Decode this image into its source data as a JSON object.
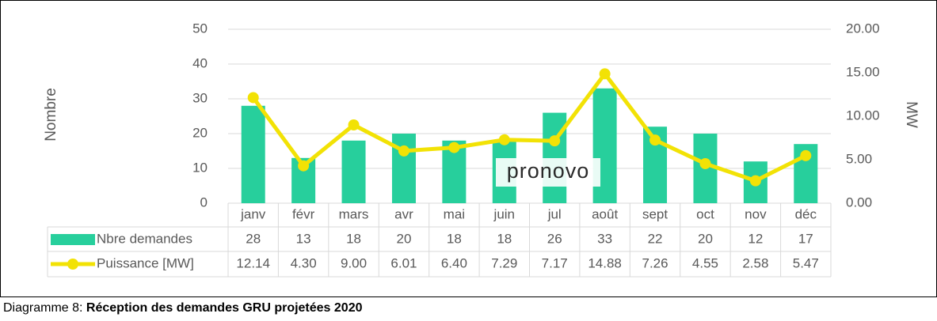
{
  "chart_data": {
    "type": "bar-line",
    "categories": [
      "janv",
      "févr",
      "mars",
      "avr",
      "mai",
      "juin",
      "jul",
      "août",
      "sept",
      "oct",
      "nov",
      "déc"
    ],
    "series": [
      {
        "name": "Nbre demandes",
        "type": "bar",
        "color": "#27cf9c",
        "values": [
          28,
          13,
          18,
          20,
          18,
          18,
          26,
          33,
          22,
          20,
          12,
          17
        ]
      },
      {
        "name": "Puissance [MW]",
        "type": "line",
        "axis": "y2",
        "color": "#f2e205",
        "values": [
          12.14,
          4.3,
          9.0,
          6.01,
          6.4,
          7.29,
          7.17,
          14.88,
          7.26,
          4.55,
          2.58,
          5.47
        ],
        "value_labels": [
          "12.14",
          "4.30",
          "9.00",
          "6.01",
          "6.40",
          "7.29",
          "7.17",
          "14.88",
          "7.26",
          "4.55",
          "2.58",
          "5.47"
        ]
      }
    ],
    "ylabel": "Nombre",
    "y2label": "MW",
    "ylim": [
      0,
      50
    ],
    "yticks": [
      0,
      10,
      20,
      30,
      40,
      50
    ],
    "y2lim": [
      0,
      20
    ],
    "y2ticks": [
      {
        "value": 0,
        "label": "0.00"
      },
      {
        "value": 5,
        "label": "5.00"
      },
      {
        "value": 10,
        "label": "10.00"
      },
      {
        "value": 15,
        "label": "15.00"
      },
      {
        "value": 20,
        "label": "20.00"
      }
    ],
    "grid": true,
    "logo": "pronovo",
    "caption": "Diagramme 8: ",
    "caption_bold": "Réception des demandes GRU projetées 2020"
  }
}
